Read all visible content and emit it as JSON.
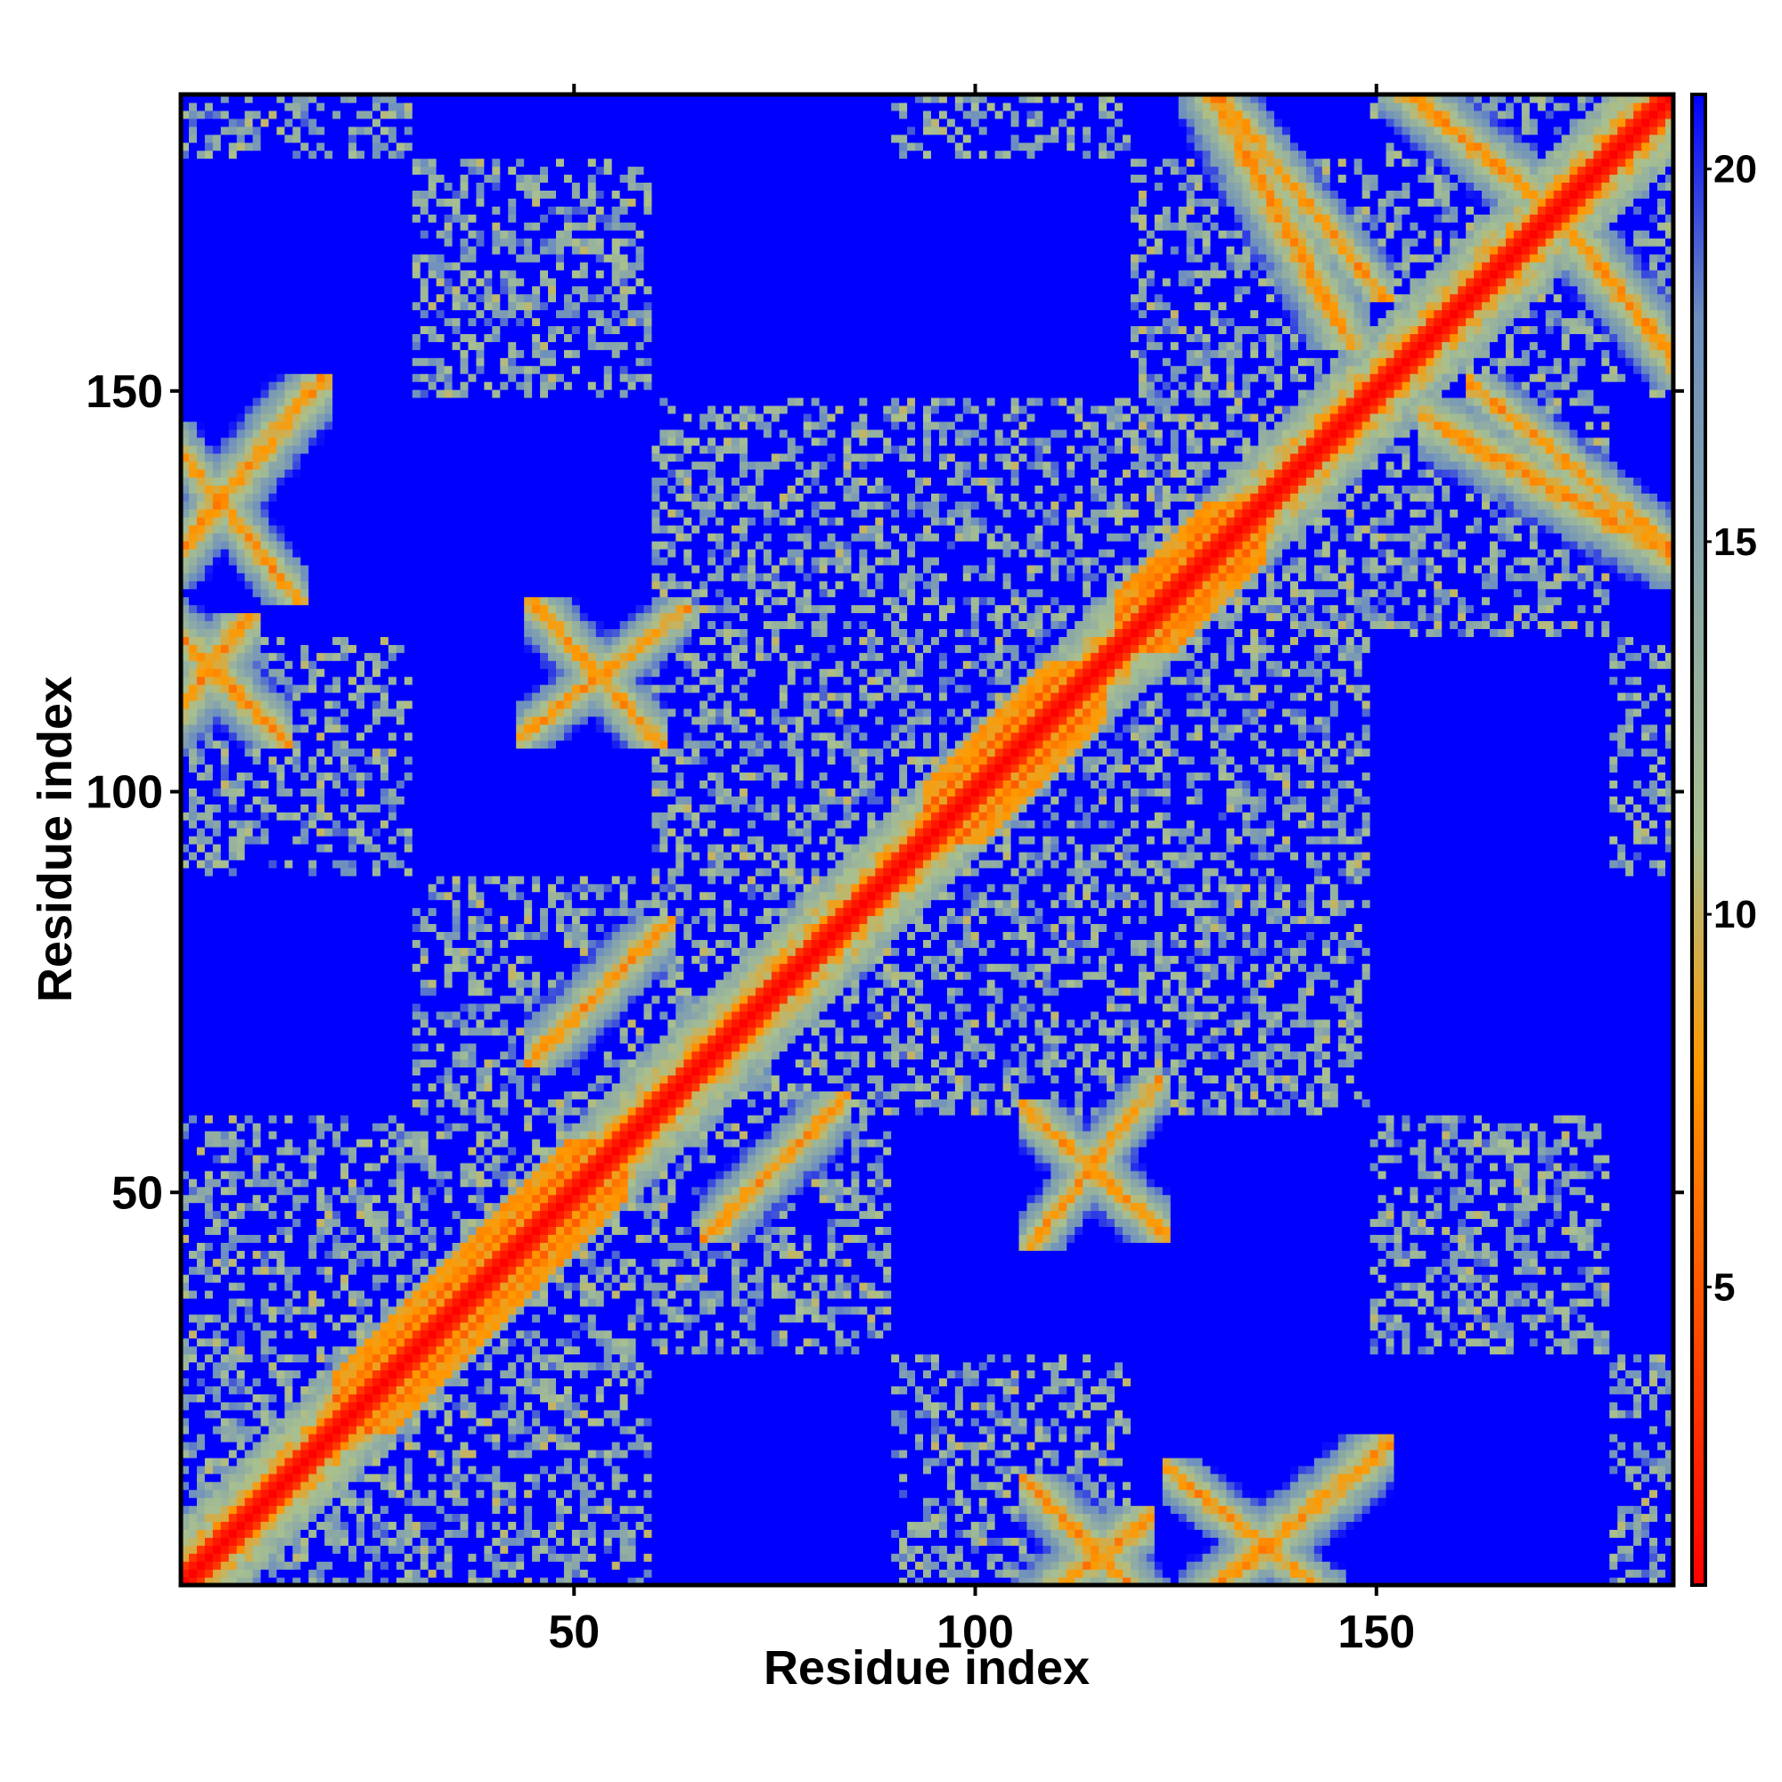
{
  "chart_data": {
    "type": "heatmap",
    "title": "",
    "xlabel": "Residue index",
    "ylabel": "Residue index",
    "n_residues": 187,
    "xlim": [
      1,
      187
    ],
    "ylim": [
      1,
      187
    ],
    "xticks": [
      50,
      100,
      150
    ],
    "yticks": [
      50,
      100,
      150
    ],
    "colorbar": {
      "range": [
        1,
        21
      ],
      "ticks": [
        5,
        10,
        15,
        20
      ],
      "colors": [
        "#ff0000",
        "#ff9900",
        "#a8c090",
        "#6d8fbf",
        "#0000ff"
      ],
      "stops": [
        1,
        8,
        11,
        18,
        21
      ]
    },
    "background_value": 21,
    "contact_features": [
      {
        "kind": "diagonal",
        "value": 1
      },
      {
        "kind": "helix-band",
        "range": [
          20,
          50
        ],
        "value": 6
      },
      {
        "kind": "helix-band",
        "range": [
          94,
          110
        ],
        "value": 6
      },
      {
        "kind": "helix-band",
        "range": [
          118,
          130
        ],
        "value": 6
      },
      {
        "kind": "antiparallel",
        "x_range": [
          131,
          148
        ],
        "y_range": [
          166,
          187
        ],
        "value": 6
      },
      {
        "kind": "antiparallel",
        "x_range": [
          1,
          12
        ],
        "y_range": [
          128,
          142
        ],
        "value": 6
      },
      {
        "kind": "antiparallel",
        "x_range": [
          0,
          10
        ],
        "y_range": [
          110,
          120
        ],
        "value": 6
      },
      {
        "kind": "antiparallel",
        "x_range": [
          48,
          57
        ],
        "y_range": [
          110,
          120
        ],
        "value": 6
      },
      {
        "kind": "antiparallel",
        "x_range": [
          160,
          187
        ],
        "y_range": [
          130,
          145
        ],
        "value": 6
      },
      {
        "kind": "antiparallel",
        "x_range": [
          155,
          170
        ],
        "y_range": [
          175,
          187
        ],
        "value": 6
      },
      {
        "kind": "parallel",
        "x_range": [
          110,
          120
        ],
        "y_range": [
          47,
          60
        ],
        "value": 6
      },
      {
        "kind": "parallel",
        "x_range": [
          70,
          80
        ],
        "y_range": [
          48,
          58
        ],
        "value": 6
      },
      {
        "kind": "parallel",
        "x_range": [
          130,
          148
        ],
        "y_range": [
          0,
          15
        ],
        "value": 6
      },
      {
        "kind": "parallel",
        "x_range": [
          110,
          118
        ],
        "y_range": [
          0,
          6
        ],
        "value": 6
      }
    ]
  }
}
